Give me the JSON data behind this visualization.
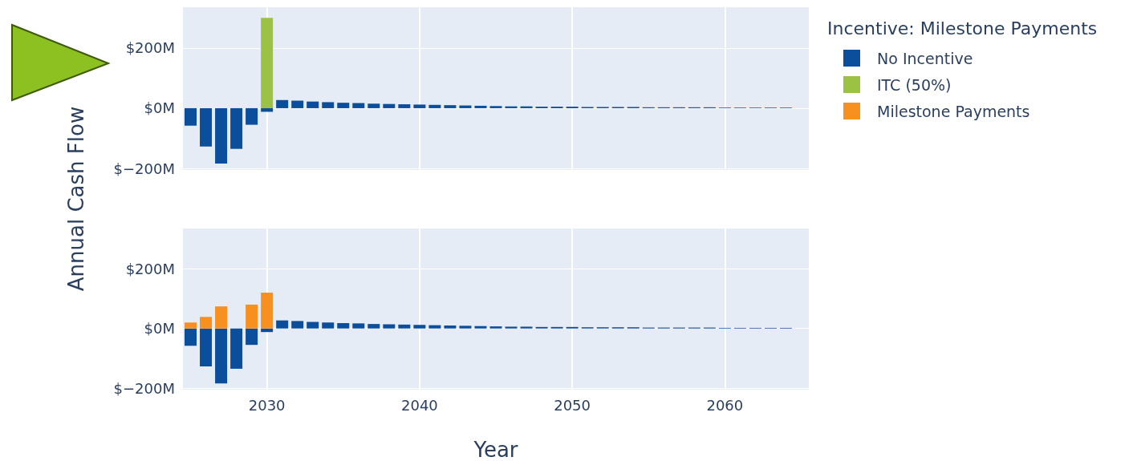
{
  "chart_data": [
    {
      "type": "bar",
      "ylabel": "Annual Cash Flow",
      "legend_title": "Incentive: Milestone Payments",
      "stacked": true,
      "grid": true,
      "legend": "top right",
      "tick_labels": "y",
      "xlim": [
        2024.5,
        2065.5
      ],
      "xticks": [
        2030,
        2040,
        2050,
        2060
      ],
      "ylim": [
        -205,
        335
      ],
      "yticks": [
        {
          "value": -200,
          "label": "$−200M"
        },
        {
          "value": 0,
          "label": "$0M"
        },
        {
          "value": 200,
          "label": "$200M"
        }
      ],
      "x": [
        2025,
        2026,
        2027,
        2028,
        2029,
        2030,
        2031,
        2032,
        2033,
        2034,
        2035,
        2036,
        2037,
        2038,
        2039,
        2040,
        2041,
        2042,
        2043,
        2044,
        2045,
        2046,
        2047,
        2048,
        2049,
        2050,
        2051,
        2052,
        2053,
        2054,
        2055,
        2056,
        2057,
        2058,
        2059,
        2060,
        2061,
        2062,
        2063,
        2064
      ],
      "series": [
        {
          "name": "No Incentive",
          "color": "#0b4f9c",
          "values": [
            -58,
            -127,
            -184,
            -135,
            -55,
            -12,
            27,
            25,
            22,
            20,
            18,
            17,
            15,
            14,
            13,
            12,
            11,
            10,
            9,
            8,
            7,
            6,
            6,
            5,
            5,
            5,
            4,
            4,
            4,
            4,
            3,
            3,
            3,
            3,
            3,
            2,
            2,
            2,
            2,
            2
          ]
        },
        {
          "name": "ITC (50%)",
          "color": "#9bc243",
          "x": [
            2030
          ],
          "values": [
            300
          ]
        }
      ]
    },
    {
      "type": "bar",
      "xlabel": "Year",
      "stacked": true,
      "grid": true,
      "legend": "top right",
      "xlim": [
        2024.5,
        2065.5
      ],
      "xticks": [
        2030,
        2040,
        2050,
        2060
      ],
      "ylim": [
        -205,
        335
      ],
      "yticks": [
        {
          "value": -200,
          "label": "$−200M"
        },
        {
          "value": 0,
          "label": "$0M"
        },
        {
          "value": 200,
          "label": "$200M"
        }
      ],
      "x": [
        2025,
        2026,
        2027,
        2028,
        2029,
        2030,
        2031,
        2032,
        2033,
        2034,
        2035,
        2036,
        2037,
        2038,
        2039,
        2040,
        2041,
        2042,
        2043,
        2044,
        2045,
        2046,
        2047,
        2048,
        2049,
        2050,
        2051,
        2052,
        2053,
        2054,
        2055,
        2056,
        2057,
        2058,
        2059,
        2060,
        2061,
        2062,
        2063,
        2064
      ],
      "series": [
        {
          "name": "No Incentive",
          "color": "#0b4f9c",
          "values": [
            -58,
            -127,
            -184,
            -135,
            -55,
            -12,
            27,
            25,
            22,
            20,
            18,
            17,
            15,
            14,
            13,
            12,
            11,
            10,
            9,
            8,
            7,
            6,
            6,
            5,
            5,
            5,
            4,
            4,
            4,
            4,
            3,
            3,
            3,
            3,
            3,
            2,
            2,
            2,
            2,
            2
          ]
        },
        {
          "name": "Milestone Payments",
          "color": "#f7901e",
          "x": [
            2025,
            2026,
            2027,
            2028,
            2029,
            2030
          ],
          "values": [
            20,
            39,
            74,
            null,
            80,
            120
          ]
        }
      ]
    }
  ]
}
